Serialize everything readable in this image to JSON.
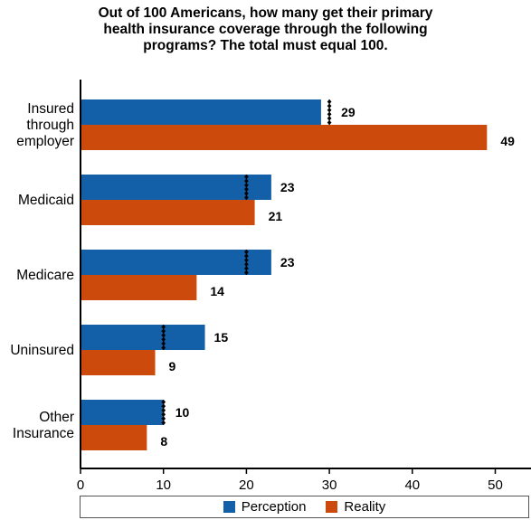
{
  "chart_data": {
    "type": "bar",
    "orientation": "horizontal",
    "title_lines": [
      "Out of 100 Americans, how many get their primary",
      "health insurance coverage through the following",
      "programs? The total must equal 100."
    ],
    "categories": [
      [
        "Insured",
        "through",
        "employer"
      ],
      [
        "Medicaid"
      ],
      [
        "Medicare"
      ],
      [
        "Uninsured"
      ],
      [
        "Other",
        "Insurance"
      ]
    ],
    "series": [
      {
        "name": "Perception",
        "values": [
          29,
          23,
          23,
          15,
          10
        ],
        "color": "#1360a8"
      },
      {
        "name": "Reality",
        "values": [
          49,
          21,
          14,
          9,
          8
        ],
        "color": "#cc4b0c"
      }
    ],
    "medians": [
      30,
      20,
      20,
      10,
      10
    ],
    "data_labels": {
      "Perception": [
        "29",
        "23",
        "23",
        "15",
        "10"
      ],
      "Reality": [
        "49",
        "21",
        "14",
        "9",
        "8"
      ]
    },
    "xlim": [
      0,
      55
    ],
    "xticks": [
      "0",
      "10",
      "20",
      "30",
      "40",
      "50"
    ],
    "xtick_values": [
      0,
      10,
      20,
      30,
      40,
      50
    ],
    "grid": false,
    "legend_position": "bottom"
  }
}
